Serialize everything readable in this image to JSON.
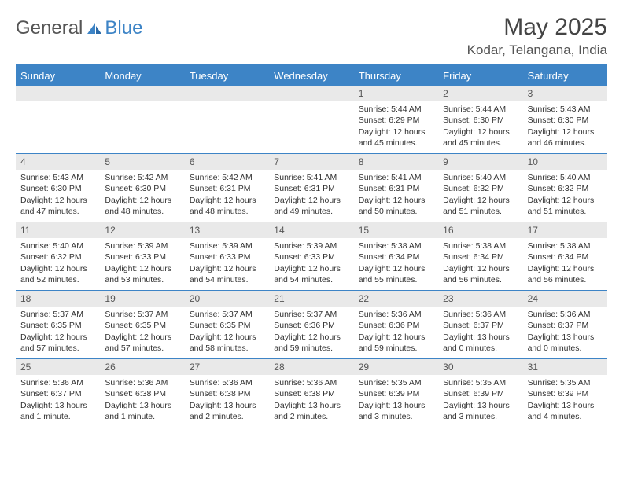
{
  "logo": {
    "part1": "General",
    "part2": "Blue"
  },
  "title": "May 2025",
  "location": "Kodar, Telangana, India",
  "colors": {
    "accent": "#3d84c6",
    "daynum_bg": "#e9e9e9",
    "text": "#333333",
    "background": "#ffffff"
  },
  "weekdays": [
    "Sunday",
    "Monday",
    "Tuesday",
    "Wednesday",
    "Thursday",
    "Friday",
    "Saturday"
  ],
  "layout": {
    "columns": 7,
    "rows": 5,
    "first_weekday_index": 4
  },
  "days": [
    {
      "n": "1",
      "sr": "5:44 AM",
      "ss": "6:29 PM",
      "dl": "12 hours and 45 minutes."
    },
    {
      "n": "2",
      "sr": "5:44 AM",
      "ss": "6:30 PM",
      "dl": "12 hours and 45 minutes."
    },
    {
      "n": "3",
      "sr": "5:43 AM",
      "ss": "6:30 PM",
      "dl": "12 hours and 46 minutes."
    },
    {
      "n": "4",
      "sr": "5:43 AM",
      "ss": "6:30 PM",
      "dl": "12 hours and 47 minutes."
    },
    {
      "n": "5",
      "sr": "5:42 AM",
      "ss": "6:30 PM",
      "dl": "12 hours and 48 minutes."
    },
    {
      "n": "6",
      "sr": "5:42 AM",
      "ss": "6:31 PM",
      "dl": "12 hours and 48 minutes."
    },
    {
      "n": "7",
      "sr": "5:41 AM",
      "ss": "6:31 PM",
      "dl": "12 hours and 49 minutes."
    },
    {
      "n": "8",
      "sr": "5:41 AM",
      "ss": "6:31 PM",
      "dl": "12 hours and 50 minutes."
    },
    {
      "n": "9",
      "sr": "5:40 AM",
      "ss": "6:32 PM",
      "dl": "12 hours and 51 minutes."
    },
    {
      "n": "10",
      "sr": "5:40 AM",
      "ss": "6:32 PM",
      "dl": "12 hours and 51 minutes."
    },
    {
      "n": "11",
      "sr": "5:40 AM",
      "ss": "6:32 PM",
      "dl": "12 hours and 52 minutes."
    },
    {
      "n": "12",
      "sr": "5:39 AM",
      "ss": "6:33 PM",
      "dl": "12 hours and 53 minutes."
    },
    {
      "n": "13",
      "sr": "5:39 AM",
      "ss": "6:33 PM",
      "dl": "12 hours and 54 minutes."
    },
    {
      "n": "14",
      "sr": "5:39 AM",
      "ss": "6:33 PM",
      "dl": "12 hours and 54 minutes."
    },
    {
      "n": "15",
      "sr": "5:38 AM",
      "ss": "6:34 PM",
      "dl": "12 hours and 55 minutes."
    },
    {
      "n": "16",
      "sr": "5:38 AM",
      "ss": "6:34 PM",
      "dl": "12 hours and 56 minutes."
    },
    {
      "n": "17",
      "sr": "5:38 AM",
      "ss": "6:34 PM",
      "dl": "12 hours and 56 minutes."
    },
    {
      "n": "18",
      "sr": "5:37 AM",
      "ss": "6:35 PM",
      "dl": "12 hours and 57 minutes."
    },
    {
      "n": "19",
      "sr": "5:37 AM",
      "ss": "6:35 PM",
      "dl": "12 hours and 57 minutes."
    },
    {
      "n": "20",
      "sr": "5:37 AM",
      "ss": "6:35 PM",
      "dl": "12 hours and 58 minutes."
    },
    {
      "n": "21",
      "sr": "5:37 AM",
      "ss": "6:36 PM",
      "dl": "12 hours and 59 minutes."
    },
    {
      "n": "22",
      "sr": "5:36 AM",
      "ss": "6:36 PM",
      "dl": "12 hours and 59 minutes."
    },
    {
      "n": "23",
      "sr": "5:36 AM",
      "ss": "6:37 PM",
      "dl": "13 hours and 0 minutes."
    },
    {
      "n": "24",
      "sr": "5:36 AM",
      "ss": "6:37 PM",
      "dl": "13 hours and 0 minutes."
    },
    {
      "n": "25",
      "sr": "5:36 AM",
      "ss": "6:37 PM",
      "dl": "13 hours and 1 minute."
    },
    {
      "n": "26",
      "sr": "5:36 AM",
      "ss": "6:38 PM",
      "dl": "13 hours and 1 minute."
    },
    {
      "n": "27",
      "sr": "5:36 AM",
      "ss": "6:38 PM",
      "dl": "13 hours and 2 minutes."
    },
    {
      "n": "28",
      "sr": "5:36 AM",
      "ss": "6:38 PM",
      "dl": "13 hours and 2 minutes."
    },
    {
      "n": "29",
      "sr": "5:35 AM",
      "ss": "6:39 PM",
      "dl": "13 hours and 3 minutes."
    },
    {
      "n": "30",
      "sr": "5:35 AM",
      "ss": "6:39 PM",
      "dl": "13 hours and 3 minutes."
    },
    {
      "n": "31",
      "sr": "5:35 AM",
      "ss": "6:39 PM",
      "dl": "13 hours and 4 minutes."
    }
  ],
  "labels": {
    "sunrise": "Sunrise:",
    "sunset": "Sunset:",
    "daylight": "Daylight:"
  },
  "typography": {
    "title_fontsize": 30,
    "location_fontsize": 17,
    "weekday_fontsize": 13,
    "cell_fontsize": 10.5
  }
}
